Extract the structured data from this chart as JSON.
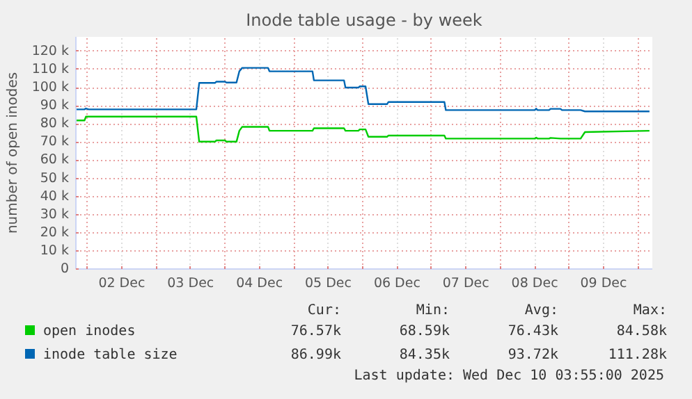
{
  "chart_data": {
    "type": "line",
    "title": "Inode table usage - by week",
    "ylabel": "number of open inodes",
    "x": [
      "2025-12-01T20:00",
      "2025-12-01T23:00",
      "2025-12-01T23:30",
      "2025-12-02T00:30",
      "2025-12-03T14:00",
      "2025-12-03T15:00",
      "2025-12-03T20:30",
      "2025-12-03T21:00",
      "2025-12-04T00:00",
      "2025-12-04T00:30",
      "2025-12-04T04:00",
      "2025-12-04T05:00",
      "2025-12-04T06:00",
      "2025-12-04T15:00",
      "2025-12-04T15:30",
      "2025-12-05T06:30",
      "2025-12-05T07:00",
      "2025-12-05T17:30",
      "2025-12-05T18:00",
      "2025-12-05T22:30",
      "2025-12-05T23:00",
      "2025-12-06T01:00",
      "2025-12-06T02:00",
      "2025-12-06T08:30",
      "2025-12-06T09:00",
      "2025-12-07T04:30",
      "2025-12-07T05:00",
      "2025-12-08T12:00",
      "2025-12-08T12:30",
      "2025-12-08T13:00",
      "2025-12-08T17:00",
      "2025-12-08T17:30",
      "2025-12-08T21:00",
      "2025-12-08T21:30",
      "2025-12-09T04:00",
      "2025-12-09T05:30",
      "2025-12-10T04:00"
    ],
    "series": [
      {
        "name": "open inodes",
        "color": "#00cc00",
        "values": [
          81900,
          81900,
          84000,
          84000,
          84000,
          70200,
          70200,
          70900,
          70900,
          70200,
          70200,
          76200,
          78400,
          78400,
          76200,
          76200,
          77600,
          77600,
          76200,
          76200,
          77000,
          77000,
          72900,
          72900,
          73600,
          73600,
          71900,
          71900,
          72400,
          71900,
          71900,
          72300,
          71900,
          71900,
          71900,
          75500,
          76200
        ]
      },
      {
        "name": "inode table size",
        "color": "#0066b3",
        "values": [
          88000,
          88000,
          88500,
          88000,
          88000,
          102600,
          102600,
          103300,
          103300,
          102800,
          102800,
          109000,
          110900,
          110900,
          109000,
          109000,
          104000,
          104000,
          100000,
          100000,
          100700,
          100700,
          90900,
          90900,
          92100,
          92100,
          87600,
          87600,
          88400,
          87600,
          87600,
          88300,
          88300,
          87600,
          87600,
          86900,
          86900
        ]
      }
    ],
    "xlim": [
      "2025-12-01T20:00",
      "2025-12-10T05:00"
    ],
    "xticks": [
      {
        "value": "2025-12-02T00:00",
        "label": null
      },
      {
        "value": "2025-12-02T12:00",
        "label": "02 Dec"
      },
      {
        "value": "2025-12-03T00:00",
        "label": null
      },
      {
        "value": "2025-12-03T12:00",
        "label": "03 Dec"
      },
      {
        "value": "2025-12-04T00:00",
        "label": null
      },
      {
        "value": "2025-12-04T12:00",
        "label": "04 Dec"
      },
      {
        "value": "2025-12-05T00:00",
        "label": null
      },
      {
        "value": "2025-12-05T12:00",
        "label": "05 Dec"
      },
      {
        "value": "2025-12-06T00:00",
        "label": null
      },
      {
        "value": "2025-12-06T12:00",
        "label": "06 Dec"
      },
      {
        "value": "2025-12-07T00:00",
        "label": null
      },
      {
        "value": "2025-12-07T12:00",
        "label": "07 Dec"
      },
      {
        "value": "2025-12-08T00:00",
        "label": null
      },
      {
        "value": "2025-12-08T12:00",
        "label": "08 Dec"
      },
      {
        "value": "2025-12-09T00:00",
        "label": null
      },
      {
        "value": "2025-12-09T12:00",
        "label": "09 Dec"
      },
      {
        "value": "2025-12-10T00:00",
        "label": null
      }
    ],
    "ylim": [
      0,
      128000
    ],
    "yticks": [
      {
        "value": 0,
        "label": "0"
      },
      {
        "value": 10000,
        "label": "10 k"
      },
      {
        "value": 20000,
        "label": "20 k"
      },
      {
        "value": 30000,
        "label": "30 k"
      },
      {
        "value": 40000,
        "label": "40 k"
      },
      {
        "value": 50000,
        "label": "50 k"
      },
      {
        "value": 60000,
        "label": "60 k"
      },
      {
        "value": 70000,
        "label": "70 k"
      },
      {
        "value": 80000,
        "label": "80 k"
      },
      {
        "value": 90000,
        "label": "90 k"
      },
      {
        "value": 100000,
        "label": "100 k"
      },
      {
        "value": 110000,
        "label": "110 k"
      },
      {
        "value": 120000,
        "label": "120 k"
      }
    ],
    "grid": true,
    "legend": "bottom",
    "annotations": [
      "Cur:",
      "Min:",
      "Avg:",
      "Max:",
      "76.57k",
      "68.59k",
      "76.43k",
      "84.58k",
      "86.99k",
      "84.35k",
      "93.72k",
      "111.28k",
      "Last update: Wed Dec 10 03:55:00 2025"
    ]
  }
}
